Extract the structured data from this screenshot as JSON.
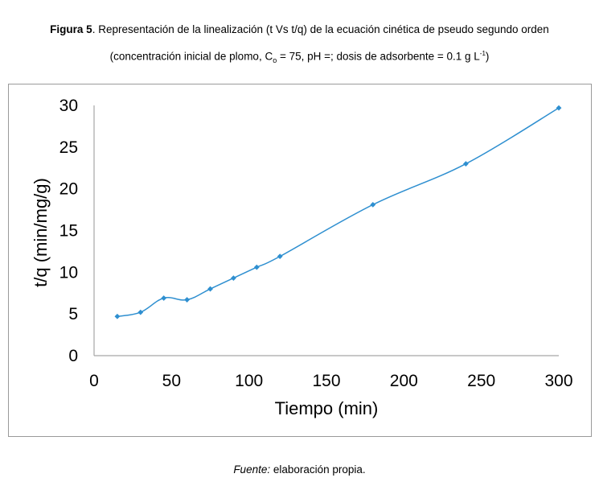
{
  "caption": {
    "label": "Figura 5",
    "line1_rest": ". Representación de la linealización (t Vs t/q) de la ecuación cinética de pseudo segundo orden",
    "line2_a": "(concentración inicial de plomo, C",
    "line2_sub": "o",
    "line2_b": " = 75, pH =; dosis de adsorbente = 0.1 g L",
    "line2_sup": "-1",
    "line2_c": ")"
  },
  "source": {
    "label": "Fuente:",
    "text": " elaboración propia."
  },
  "chart_data": {
    "type": "line",
    "title": "",
    "xlabel": "Tiempo (min)",
    "ylabel": "t/q (min/mg/g)",
    "xlim": [
      0,
      300
    ],
    "ylim": [
      0,
      30
    ],
    "xticks": [
      0,
      50,
      100,
      150,
      200,
      250,
      300
    ],
    "yticks": [
      0,
      5,
      10,
      15,
      20,
      25,
      30
    ],
    "grid": false,
    "series": [
      {
        "name": "t/q",
        "color": "#2e8fd0",
        "x": [
          15,
          30,
          45,
          60,
          75,
          90,
          105,
          120,
          180,
          240,
          300
        ],
        "y": [
          4.7,
          5.2,
          6.9,
          6.7,
          8.0,
          9.3,
          10.6,
          11.9,
          18.1,
          23.0,
          29.7
        ]
      }
    ]
  }
}
